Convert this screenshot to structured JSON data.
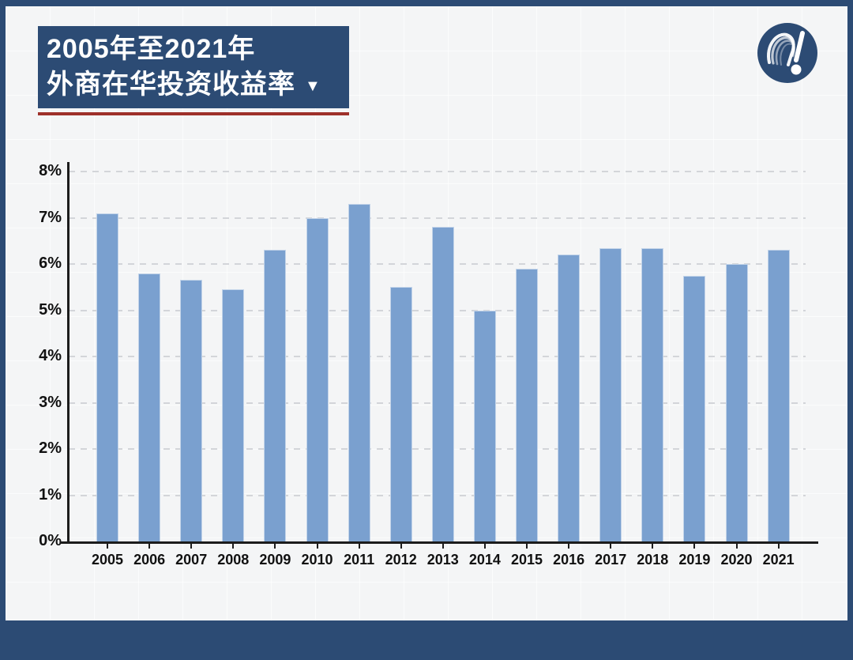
{
  "header": {
    "title_line1": "2005年至2021年",
    "title_line2": "外商在华投资收益率",
    "dropdown_marker": "▼"
  },
  "logo": {
    "name": "wave-exclamation-brand-logo"
  },
  "colors": {
    "frame_blue": "#2c4b74",
    "title_bg": "#2c4b74",
    "accent_red": "#9e302a",
    "bar_blue": "#7aa0cf",
    "background": "#f4f5f6",
    "axis": "#1c1c1c",
    "gridline": "#d3d5d9"
  },
  "chart_data": {
    "type": "bar",
    "title": "2005年至2021年外商在华投资收益率",
    "categories": [
      "2005",
      "2006",
      "2007",
      "2008",
      "2009",
      "2010",
      "2011",
      "2012",
      "2013",
      "2014",
      "2015",
      "2016",
      "2017",
      "2018",
      "2019",
      "2020",
      "2021"
    ],
    "values": [
      7.1,
      5.8,
      5.65,
      5.45,
      6.3,
      7.0,
      7.3,
      5.5,
      6.8,
      5.0,
      5.9,
      6.2,
      6.35,
      6.35,
      5.75,
      6.0,
      6.3
    ],
    "unit": "%",
    "xlabel": "",
    "ylabel": "",
    "ylim": [
      0,
      8
    ],
    "ytick_interval": 1,
    "ytick_labels": [
      "0%",
      "1%",
      "2%",
      "3%",
      "4%",
      "5%",
      "6%",
      "7%",
      "8%"
    ],
    "grid": "horizontal-dashed",
    "legend": "none",
    "bar_color": "#7aa0cf"
  }
}
